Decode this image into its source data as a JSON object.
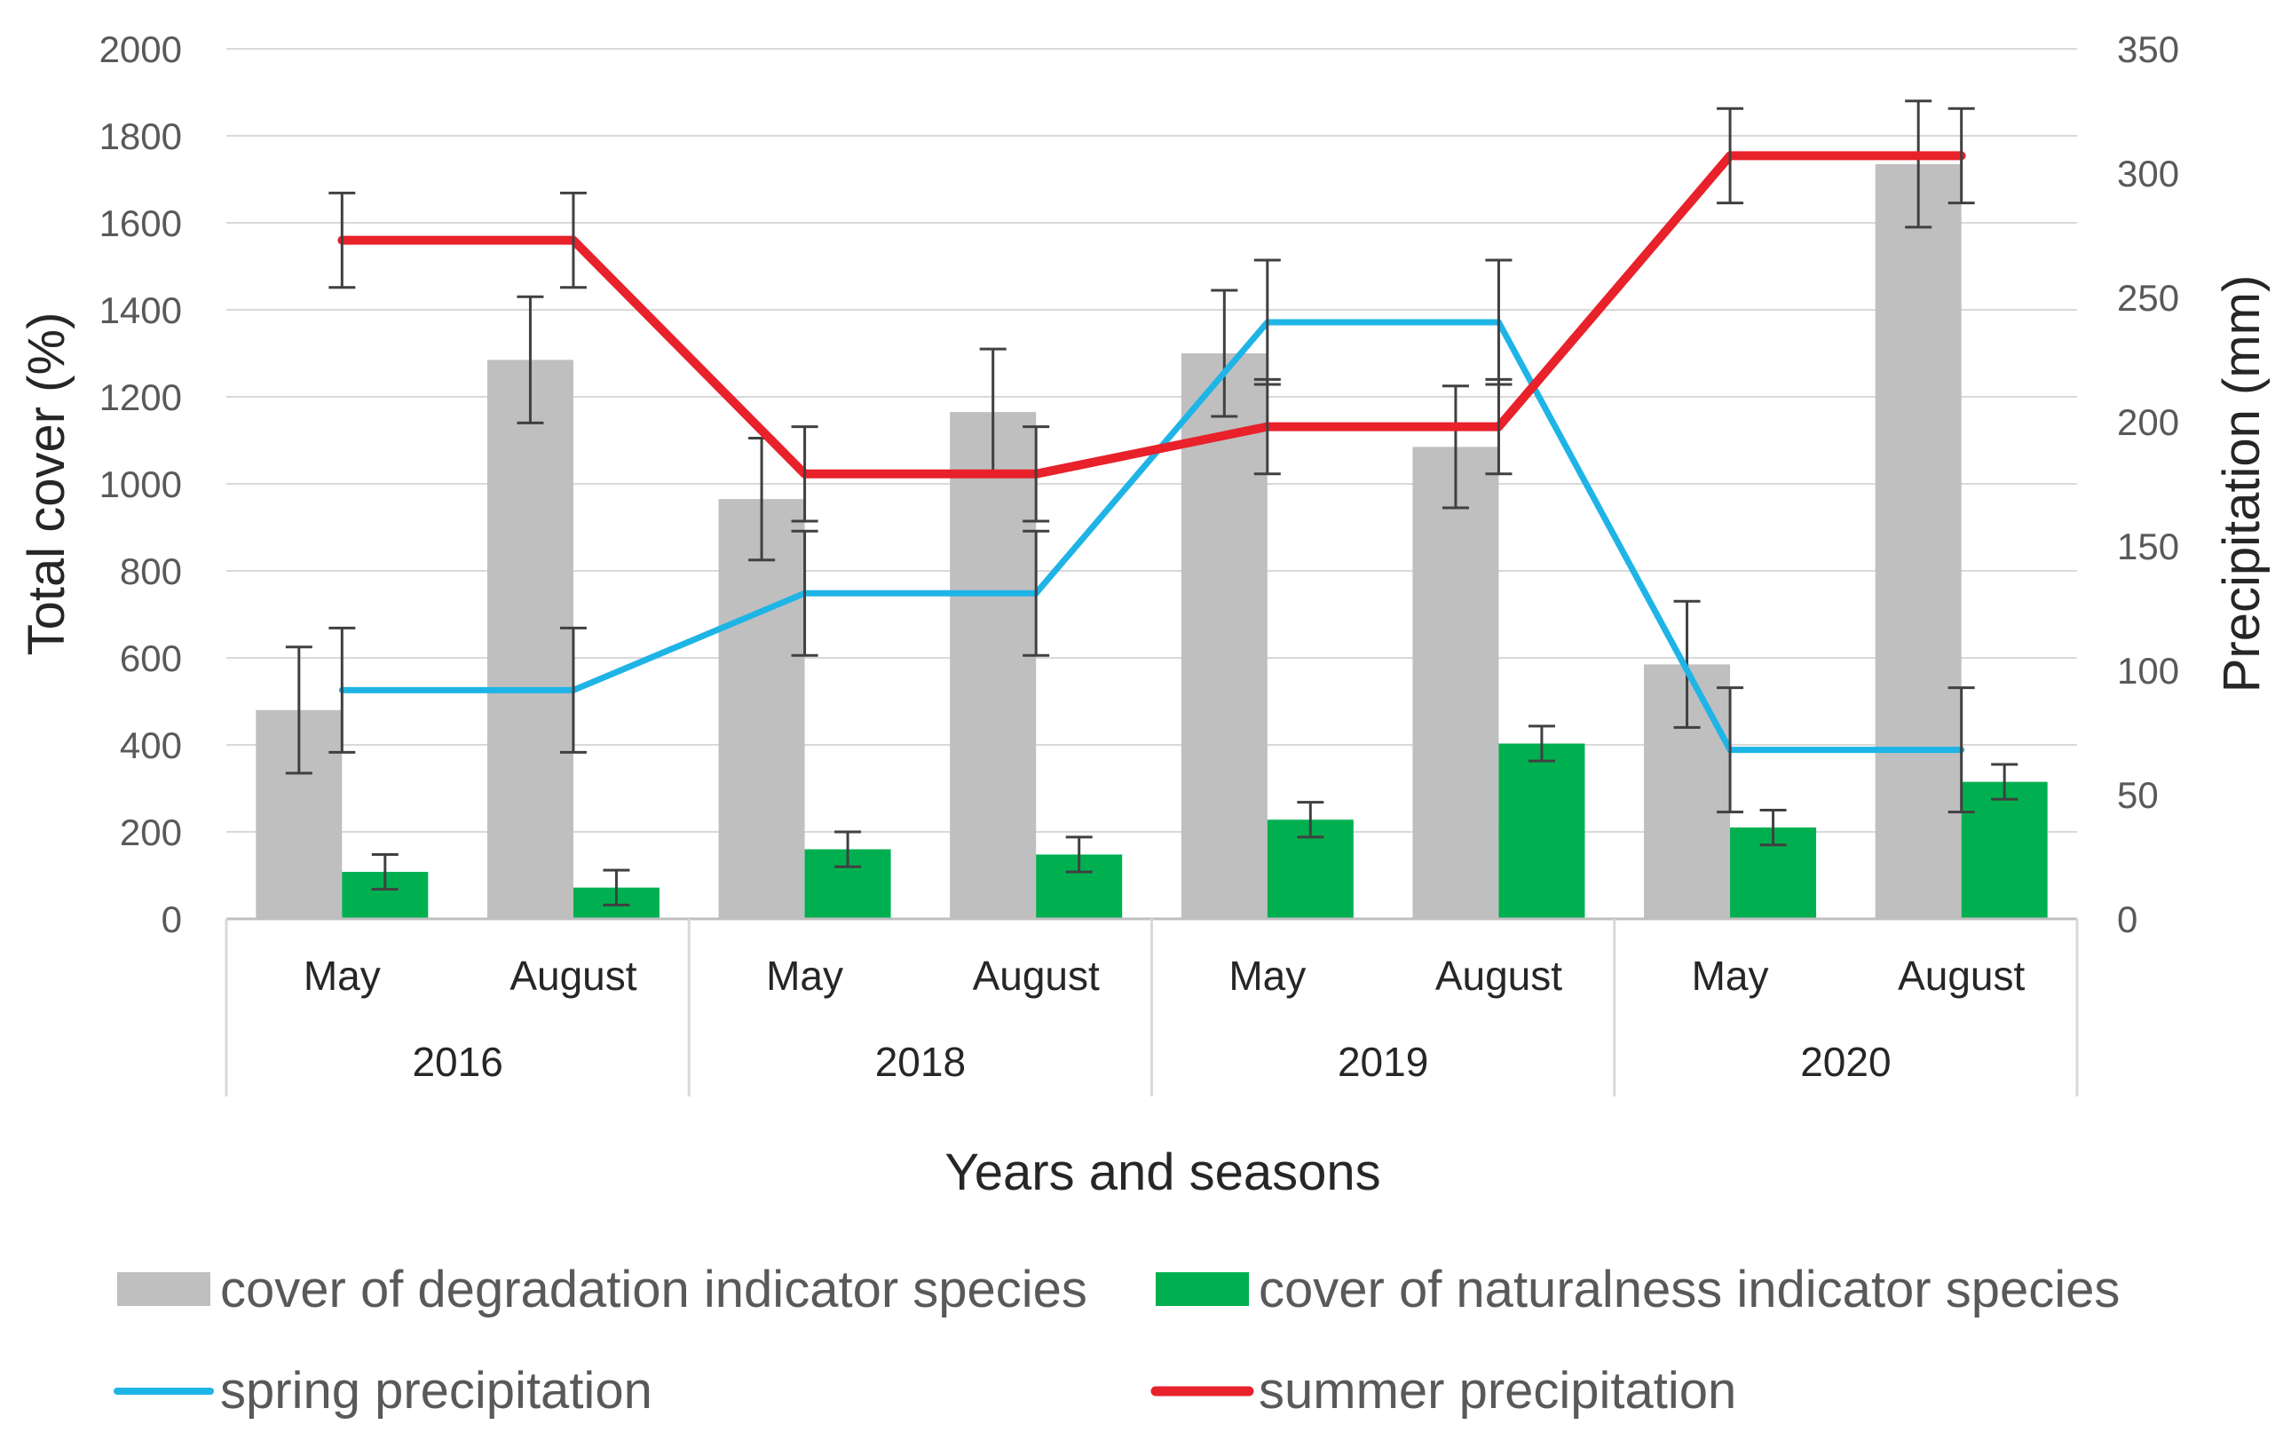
{
  "chart_data": {
    "type": "bar",
    "categories": [
      {
        "season": "May",
        "year": "2016"
      },
      {
        "season": "August",
        "year": "2016"
      },
      {
        "season": "May",
        "year": "2018"
      },
      {
        "season": "August",
        "year": "2018"
      },
      {
        "season": "May",
        "year": "2019"
      },
      {
        "season": "August",
        "year": "2019"
      },
      {
        "season": "May",
        "year": "2020"
      },
      {
        "season": "August",
        "year": "2020"
      }
    ],
    "years": [
      "2016",
      "2018",
      "2019",
      "2020"
    ],
    "bar_series": [
      {
        "name": "cover of degradation indicator species",
        "color": "#bfbfbf",
        "axis": "left",
        "values": [
          480,
          1285,
          965,
          1165,
          1300,
          1085,
          585,
          1735
        ],
        "errors": [
          145,
          145,
          140,
          145,
          145,
          140,
          145,
          145
        ]
      },
      {
        "name": "cover of naturalness indicator species",
        "color": "#00b050",
        "axis": "left",
        "values": [
          108,
          72,
          160,
          148,
          228,
          403,
          210,
          315
        ],
        "errors": [
          40,
          40,
          40,
          40,
          40,
          40,
          40,
          40
        ]
      }
    ],
    "line_series": [
      {
        "name": "spring precipitation",
        "color": "#1fb4e6",
        "axis": "right",
        "values": [
          92,
          92,
          131,
          131,
          240,
          240,
          68,
          68
        ],
        "errors": [
          25,
          25,
          25,
          25,
          25,
          25,
          25,
          25
        ]
      },
      {
        "name": "summer precipitation",
        "color": "#e8212a",
        "axis": "right",
        "values": [
          273,
          273,
          179,
          179,
          198,
          198,
          307,
          307
        ],
        "errors": [
          19,
          19,
          19,
          19,
          19,
          19,
          19,
          19
        ]
      }
    ],
    "xlabel": "Years and seasons",
    "ylabel": "Total cover (%)",
    "y2label": "Precipitation (mm)",
    "ylim": [
      0,
      2000
    ],
    "yticks": [
      0,
      200,
      400,
      600,
      800,
      1000,
      1200,
      1400,
      1600,
      1800,
      2000
    ],
    "y2lim": [
      0,
      350
    ],
    "y2ticks": [
      0,
      50,
      100,
      150,
      200,
      250,
      300,
      350
    ],
    "grid": true,
    "legend_position": "bottom"
  }
}
